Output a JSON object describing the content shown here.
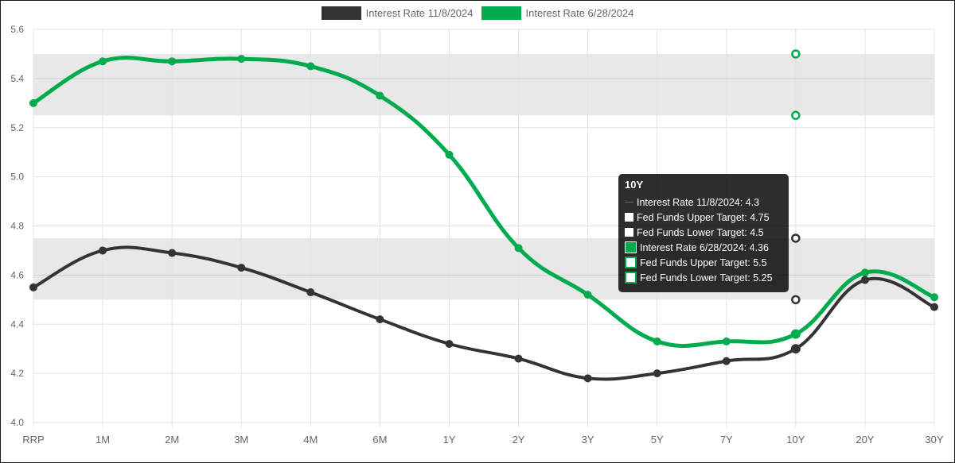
{
  "legend": [
    {
      "label": "Interest Rate 11/8/2024",
      "color": "#333333"
    },
    {
      "label": "Interest Rate 6/28/2024",
      "color": "#00ab4e"
    }
  ],
  "tooltip": {
    "title": "10Y",
    "rows": [
      {
        "text": "Interest Rate 11/8/2024: 4.3",
        "box": "line",
        "color": "#333333"
      },
      {
        "text": "Fed Funds Upper Target: 4.75",
        "box": "white",
        "color": "#ffffff"
      },
      {
        "text": "Fed Funds Lower Target: 4.5",
        "box": "white",
        "color": "#ffffff"
      },
      {
        "text": "Interest Rate 6/28/2024: 4.36",
        "box": "green",
        "color": "#00ab4e"
      },
      {
        "text": "Fed Funds Upper Target: 5.5",
        "box": "greenwhite",
        "color": "#00ab4e"
      },
      {
        "text": "Fed Funds Lower Target: 5.25",
        "box": "greenwhite",
        "color": "#00ab4e"
      }
    ]
  },
  "chart_data": {
    "type": "line",
    "categories": [
      "RRP",
      "1M",
      "2M",
      "3M",
      "4M",
      "6M",
      "1Y",
      "2Y",
      "3Y",
      "5Y",
      "7Y",
      "10Y",
      "20Y",
      "30Y"
    ],
    "ylim": [
      4.0,
      5.6
    ],
    "yticks": [
      "4.0",
      "4.2",
      "4.4",
      "4.6",
      "4.8",
      "5.0",
      "5.2",
      "5.4",
      "5.6"
    ],
    "grid": true,
    "legend_position": "top-center",
    "series": [
      {
        "name": "Interest Rate 11/8/2024",
        "color": "#333333",
        "values": [
          4.55,
          4.7,
          4.69,
          4.63,
          4.53,
          4.42,
          4.32,
          4.26,
          4.18,
          4.2,
          4.25,
          4.3,
          4.58,
          4.47
        ]
      },
      {
        "name": "Interest Rate 6/28/2024",
        "color": "#00ab4e",
        "values": [
          5.3,
          5.47,
          5.47,
          5.48,
          5.45,
          5.33,
          5.09,
          4.71,
          4.52,
          4.33,
          4.33,
          4.36,
          4.61,
          4.51
        ]
      }
    ],
    "bands": [
      {
        "lower": 4.5,
        "upper": 4.75,
        "color": "#e8e8e8"
      },
      {
        "lower": 5.25,
        "upper": 5.5,
        "color": "#e8e8e8"
      }
    ],
    "target_markers": [
      {
        "category": "10Y",
        "values": [
          4.75,
          4.5
        ],
        "color": "#333333"
      },
      {
        "category": "10Y",
        "values": [
          5.5,
          5.25
        ],
        "color": "#00ab4e"
      }
    ]
  }
}
